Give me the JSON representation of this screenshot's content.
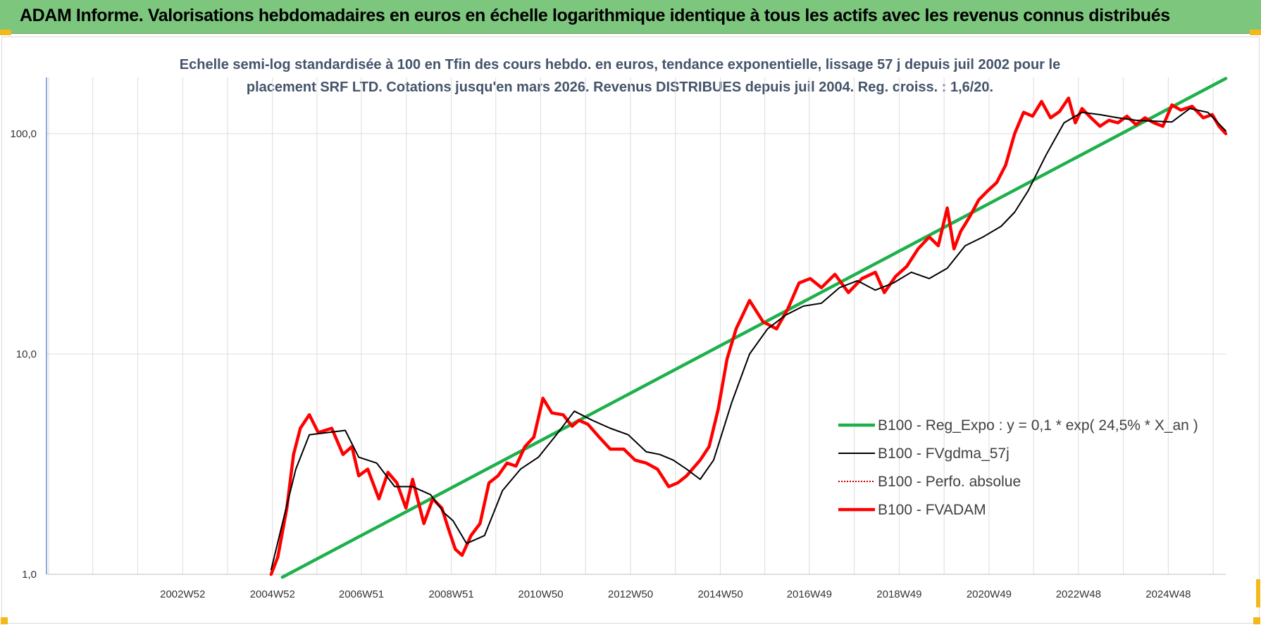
{
  "header": {
    "title": "ADAM Informe. Valorisations hebdomadaires en euros en échelle logarithmique identique à tous les actifs avec les revenus connus distribués"
  },
  "chart_data": {
    "type": "line",
    "title_line1": "Echelle semi-log standardisée à 100 en Tfin des cours hebdo. en euros, tendance exponentielle, lissage 57 j depuis juil 2002 pour le",
    "title_line2": "placement SRF LTD. Cotations jusqu'en mars 2026. Revenus DISTRIBUES depuis juil 2004. Reg. croiss. : 1,6/20.",
    "y_scale": "log",
    "ylim": [
      1,
      180
    ],
    "y_ticks": [
      {
        "value": 1,
        "label": "1,0"
      },
      {
        "value": 10,
        "label": "10,0"
      },
      {
        "value": 100,
        "label": "100,0"
      }
    ],
    "xlim": [
      1999.95,
      2026.2
    ],
    "x_ticks": [
      {
        "value": 2002.98,
        "label": "2002W52"
      },
      {
        "value": 2004.98,
        "label": "2004W52"
      },
      {
        "value": 2006.96,
        "label": "2006W51"
      },
      {
        "value": 2008.96,
        "label": "2008W51"
      },
      {
        "value": 2010.95,
        "label": "2010W50"
      },
      {
        "value": 2012.95,
        "label": "2012W50"
      },
      {
        "value": 2014.95,
        "label": "2014W50"
      },
      {
        "value": 2016.93,
        "label": "2016W49"
      },
      {
        "value": 2018.93,
        "label": "2018W49"
      },
      {
        "value": 2020.93,
        "label": "2020W49"
      },
      {
        "value": 2022.92,
        "label": "2022W48"
      },
      {
        "value": 2024.92,
        "label": "2024W48"
      }
    ],
    "x_gridlines": [
      2000.0,
      2000.98,
      2001.98,
      2002.98,
      2003.98,
      2004.98,
      2005.97,
      2006.96,
      2007.96,
      2008.96,
      2009.95,
      2010.95,
      2011.95,
      2012.95,
      2013.95,
      2014.95,
      2015.94,
      2016.93,
      2017.93,
      2018.93,
      2019.93,
      2020.93,
      2021.92,
      2022.92,
      2023.92,
      2024.92,
      2025.92
    ],
    "legend_position": "right-middle",
    "series": [
      {
        "name": "B100 - Reg_Expo : y = 0,1 * exp( 24,5% *  X_an )",
        "color": "#1db04b",
        "style": "solid-thick",
        "x": [
          2005.2,
          2026.2
        ],
        "y": [
          0.97,
          178
        ]
      },
      {
        "name": "B100 - FVgdma_57j",
        "color": "#000000",
        "style": "solid-thin",
        "x": [
          2004.95,
          2005.2,
          2005.5,
          2005.8,
          2006.2,
          2006.6,
          2006.9,
          2007.3,
          2007.7,
          2008.1,
          2008.5,
          2008.8,
          2009.0,
          2009.3,
          2009.7,
          2010.1,
          2010.5,
          2010.9,
          2011.3,
          2011.7,
          2012.1,
          2012.5,
          2012.9,
          2013.3,
          2013.6,
          2013.9,
          2014.2,
          2014.5,
          2014.8,
          2015.2,
          2015.6,
          2016.0,
          2016.4,
          2016.8,
          2017.2,
          2017.6,
          2018.0,
          2018.4,
          2018.8,
          2019.2,
          2019.6,
          2020.0,
          2020.4,
          2020.8,
          2021.2,
          2021.5,
          2021.8,
          2022.2,
          2022.6,
          2023.0,
          2023.4,
          2023.8,
          2024.2,
          2024.6,
          2025.0,
          2025.4,
          2025.8,
          2026.2
        ],
        "y": [
          1.05,
          1.7,
          3.0,
          4.3,
          4.4,
          4.5,
          3.4,
          3.2,
          2.5,
          2.5,
          2.3,
          1.9,
          1.75,
          1.38,
          1.5,
          2.4,
          3.0,
          3.4,
          4.3,
          5.5,
          5.0,
          4.6,
          4.3,
          3.6,
          3.5,
          3.3,
          3.0,
          2.7,
          3.3,
          6.0,
          10.0,
          13.0,
          15.0,
          16.5,
          17.0,
          20.0,
          21.5,
          19.5,
          21.0,
          23.5,
          22.0,
          24.5,
          31.0,
          34.0,
          38.0,
          44.0,
          55.0,
          80.0,
          112.0,
          125.0,
          122.0,
          118.0,
          115.0,
          114.0,
          113.0,
          130.0,
          125.0,
          103.0
        ]
      },
      {
        "name": "B100 - Perfo. absolue",
        "color": "#c00000",
        "style": "dotted",
        "x": [],
        "y": []
      },
      {
        "name": "B100 - FVADAM",
        "color": "#ff0000",
        "style": "solid-thick",
        "x": [
          2004.95,
          2005.1,
          2005.3,
          2005.45,
          2005.6,
          2005.8,
          2006.0,
          2006.3,
          2006.55,
          2006.75,
          2006.9,
          2007.1,
          2007.35,
          2007.55,
          2007.75,
          2007.95,
          2008.1,
          2008.35,
          2008.55,
          2008.75,
          2008.9,
          2009.05,
          2009.2,
          2009.4,
          2009.6,
          2009.8,
          2010.0,
          2010.2,
          2010.4,
          2010.6,
          2010.8,
          2011.0,
          2011.2,
          2011.45,
          2011.65,
          2011.8,
          2012.0,
          2012.25,
          2012.5,
          2012.8,
          2013.05,
          2013.3,
          2013.55,
          2013.8,
          2014.0,
          2014.2,
          2014.5,
          2014.7,
          2014.9,
          2015.1,
          2015.3,
          2015.6,
          2015.9,
          2016.2,
          2016.45,
          2016.7,
          2016.95,
          2017.2,
          2017.5,
          2017.8,
          2018.1,
          2018.4,
          2018.6,
          2018.85,
          2019.1,
          2019.35,
          2019.6,
          2019.8,
          2020.0,
          2020.15,
          2020.3,
          2020.5,
          2020.7,
          2020.9,
          2021.1,
          2021.3,
          2021.5,
          2021.7,
          2021.9,
          2022.1,
          2022.3,
          2022.5,
          2022.7,
          2022.85,
          2023.0,
          2023.2,
          2023.4,
          2023.6,
          2023.8,
          2024.0,
          2024.2,
          2024.4,
          2024.6,
          2024.8,
          2025.0,
          2025.2,
          2025.45,
          2025.7,
          2025.9,
          2026.05,
          2026.2
        ],
        "y": [
          1.0,
          1.2,
          2.0,
          3.5,
          4.6,
          5.3,
          4.4,
          4.6,
          3.5,
          3.8,
          2.8,
          3.0,
          2.2,
          2.9,
          2.6,
          2.0,
          2.7,
          1.7,
          2.2,
          2.0,
          1.6,
          1.3,
          1.22,
          1.5,
          1.7,
          2.6,
          2.8,
          3.2,
          3.1,
          3.8,
          4.2,
          6.3,
          5.4,
          5.3,
          4.7,
          5.0,
          4.8,
          4.2,
          3.7,
          3.7,
          3.3,
          3.2,
          3.0,
          2.5,
          2.6,
          2.8,
          3.3,
          3.8,
          5.6,
          9.5,
          13.0,
          17.5,
          14.0,
          13.0,
          16.0,
          21.0,
          22.0,
          20.0,
          23.0,
          19.0,
          22.0,
          23.5,
          19.0,
          22.5,
          25.0,
          30.0,
          34.0,
          31.0,
          46.0,
          30.0,
          36.0,
          42.0,
          50.0,
          55.0,
          60.0,
          72.0,
          100.0,
          125.0,
          120.0,
          140.0,
          118.0,
          126.0,
          145.0,
          112.0,
          130.0,
          118.0,
          108.0,
          115.0,
          112.0,
          120.0,
          110.0,
          118.0,
          112.0,
          108.0,
          135.0,
          128.0,
          133.0,
          118.0,
          122.0,
          108.0,
          100.0
        ]
      }
    ]
  }
}
